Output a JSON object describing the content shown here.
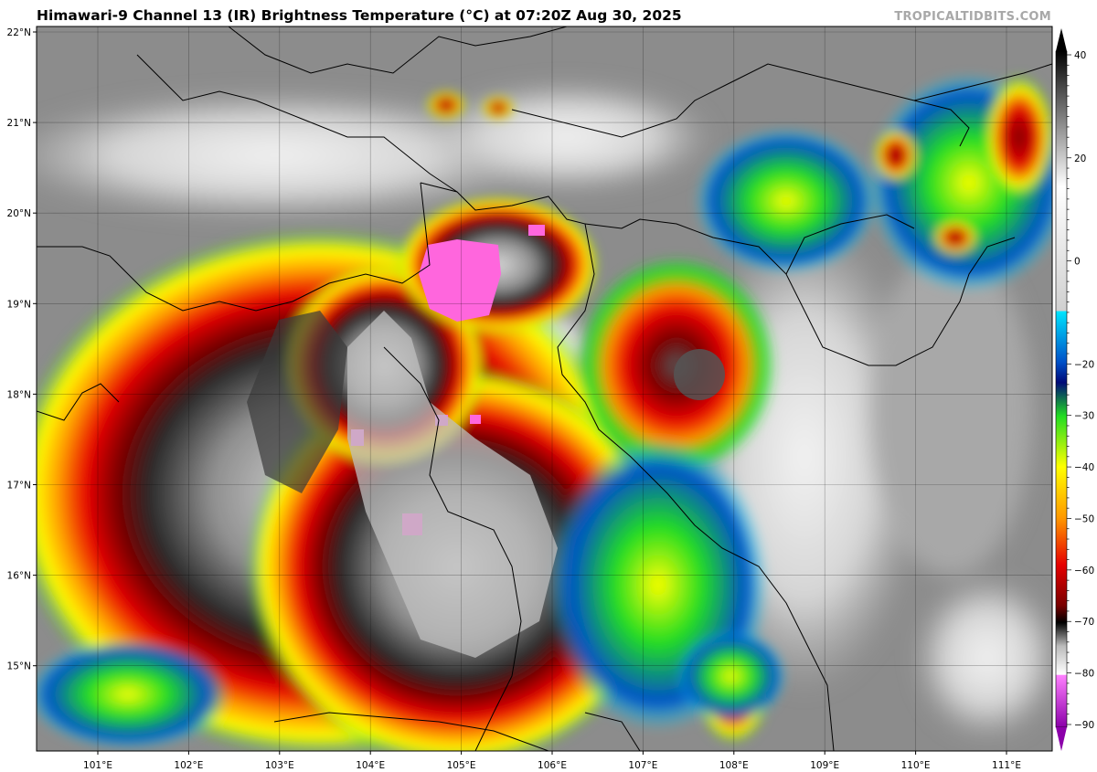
{
  "title": "Himawari-9 Channel 13 (IR) Brightness Temperature (°C) at 07:20Z Aug 30, 2025",
  "credit": "TROPICALTIDBITS.COM",
  "map": {
    "lat_labels": [
      {
        "lat": 22,
        "label": "22°N"
      },
      {
        "lat": 21,
        "label": "21°N"
      },
      {
        "lat": 20,
        "label": "20°N"
      },
      {
        "lat": 19,
        "label": "19°N"
      },
      {
        "lat": 18,
        "label": "18°N"
      },
      {
        "lat": 17,
        "label": "17°N"
      },
      {
        "lat": 16,
        "label": "16°N"
      },
      {
        "lat": 15,
        "label": "15°N"
      }
    ],
    "lon_labels": [
      {
        "lon": 101,
        "label": "101°E"
      },
      {
        "lon": 102,
        "label": "102°E"
      },
      {
        "lon": 103,
        "label": "103°E"
      },
      {
        "lon": 104,
        "label": "104°E"
      },
      {
        "lon": 105,
        "label": "105°E"
      },
      {
        "lon": 106,
        "label": "106°E"
      },
      {
        "lon": 107,
        "label": "107°E"
      },
      {
        "lon": 108,
        "label": "108°E"
      },
      {
        "lon": 109,
        "label": "109°E"
      },
      {
        "lon": 110,
        "label": "110°E"
      },
      {
        "lon": 111,
        "label": "111°E"
      }
    ]
  },
  "colorbar": {
    "unit": "°C",
    "range": [
      -90,
      40
    ],
    "labels": [
      {
        "value": 40,
        "label": "40"
      },
      {
        "value": 20,
        "label": "20"
      },
      {
        "value": 0,
        "label": "0"
      },
      {
        "value": -20,
        "label": "−20"
      },
      {
        "value": -30,
        "label": "−30"
      },
      {
        "value": -40,
        "label": "−40"
      },
      {
        "value": -50,
        "label": "−50"
      },
      {
        "value": -60,
        "label": "−60"
      },
      {
        "value": -70,
        "label": "−70"
      },
      {
        "value": -80,
        "label": "−80"
      },
      {
        "value": -90,
        "label": "−90"
      }
    ],
    "colors": {
      "black": "#000000",
      "dark_gray": "#444444",
      "gray": "#9a9a9a",
      "light_gray": "#d9d9d9",
      "cyan": "#00e5ff",
      "blue": "#0050c8",
      "navy": "#000a78",
      "green": "#22dd22",
      "yellow": "#ffff00",
      "orange": "#ff9900",
      "red": "#e60000",
      "dark_red": "#780000",
      "magenta": "#ff50ff",
      "purple": "#8c00aa"
    }
  }
}
